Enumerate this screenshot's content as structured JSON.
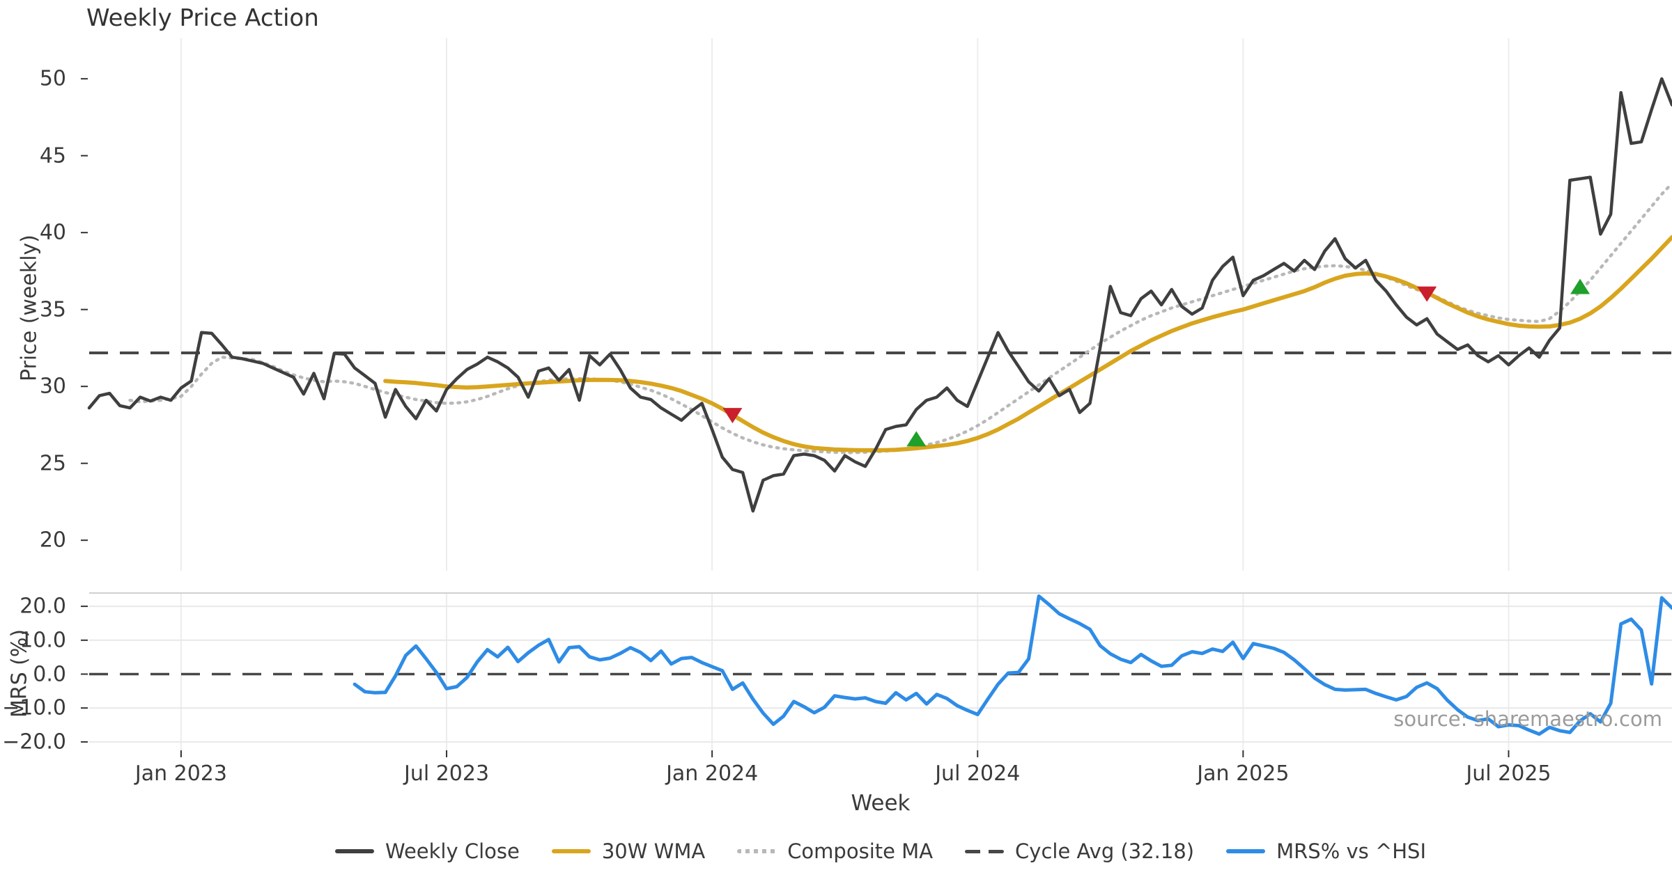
{
  "title": "Weekly Price Action",
  "source_text": "source: sharemaestro.com",
  "colors": {
    "weekly_close": "#3f3f3f",
    "wma": "#d9a51e",
    "composite": "#b8b8b8",
    "cycle_avg": "#474747",
    "mrs": "#2e8ce6",
    "sell_marker": "#c9202c",
    "buy_marker": "#1fa02a",
    "grid": "#ececec",
    "grid_h": "#e8e8e8",
    "spine": "#d0d0d0",
    "tick_text": "#3a3a3a",
    "source": "#9b9b9b"
  },
  "legend": [
    {
      "label": "Weekly Close",
      "swatch": "sw-solid-dark"
    },
    {
      "label": "30W WMA",
      "swatch": "sw-gold"
    },
    {
      "label": "Composite MA",
      "swatch": "sw-dotted"
    },
    {
      "label": "Cycle Avg (32.18)",
      "swatch": "sw-dashed"
    },
    {
      "label": "MRS% vs ^HSI",
      "swatch": "sw-blue"
    }
  ],
  "axes": {
    "price_axis_title": "Price (weekly)",
    "mrs_axis_title": "MRS (%)",
    "x_axis_title": "Week",
    "price_ticks": [
      {
        "v": 20,
        "label": "20"
      },
      {
        "v": 25,
        "label": "25"
      },
      {
        "v": 30,
        "label": "30"
      },
      {
        "v": 35,
        "label": "35"
      },
      {
        "v": 40,
        "label": "40"
      },
      {
        "v": 45,
        "label": "45"
      },
      {
        "v": 50,
        "label": "50"
      }
    ],
    "mrs_ticks": [
      {
        "v": 20,
        "label": "20.0"
      },
      {
        "v": 10,
        "label": "10.0"
      },
      {
        "v": 0,
        "label": "0.0"
      },
      {
        "v": -10,
        "label": "−10.0"
      },
      {
        "v": -20,
        "label": "−20.0"
      }
    ],
    "x_ticks": [
      {
        "week": 9,
        "label": "Jan 2023"
      },
      {
        "week": 35,
        "label": "Jul 2023"
      },
      {
        "week": 61,
        "label": "Jan 2024"
      },
      {
        "week": 87,
        "label": "Jul 2024"
      },
      {
        "week": 113,
        "label": "Jan 2025"
      },
      {
        "week": 139,
        "label": "Jul 2025"
      }
    ]
  },
  "chart_data": [
    {
      "type": "line",
      "panel": "price",
      "title": "Weekly Price Action",
      "ylabel": "Price (weekly)",
      "ylim": [
        19.3,
        52.6
      ],
      "x_start_date": "2022-10-31",
      "x_step": "1 week",
      "weeks_total": 156,
      "cycle_avg": 32.18,
      "series": [
        {
          "name": "Weekly Close",
          "start_week": 0,
          "values": [
            28.6,
            29.4,
            29.55,
            28.75,
            28.6,
            29.3,
            29.05,
            29.3,
            29.1,
            29.9,
            30.35,
            33.5,
            33.45,
            32.7,
            31.9,
            31.8,
            31.65,
            31.5,
            31.2,
            30.9,
            30.6,
            29.5,
            30.85,
            29.2,
            32.15,
            32.1,
            31.2,
            30.7,
            30.2,
            28.0,
            29.8,
            28.7,
            27.9,
            29.1,
            28.4,
            29.8,
            30.5,
            31.1,
            31.45,
            31.9,
            31.6,
            31.2,
            30.6,
            29.3,
            31.0,
            31.2,
            30.4,
            31.1,
            29.1,
            32.0,
            31.4,
            32.1,
            31.1,
            29.9,
            29.3,
            29.15,
            28.6,
            28.2,
            27.8,
            28.4,
            28.9,
            27.2,
            25.4,
            24.6,
            24.4,
            21.9,
            23.9,
            24.2,
            24.3,
            25.5,
            25.6,
            25.5,
            25.2,
            24.5,
            25.5,
            25.1,
            24.8,
            25.9,
            27.2,
            27.4,
            27.5,
            28.5,
            29.1,
            29.3,
            29.9,
            29.1,
            28.7,
            30.3,
            31.9,
            33.5,
            32.3,
            31.3,
            30.3,
            29.7,
            30.5,
            29.4,
            29.8,
            28.3,
            28.9,
            32.5,
            36.5,
            34.8,
            34.6,
            35.7,
            36.2,
            35.3,
            36.3,
            35.2,
            34.7,
            35.1,
            36.9,
            37.8,
            38.4,
            35.9,
            36.9,
            37.2,
            37.6,
            38.0,
            37.5,
            38.2,
            37.6,
            38.8,
            39.6,
            38.3,
            37.7,
            38.2,
            36.9,
            36.2,
            35.3,
            34.5,
            34.0,
            34.4,
            33.4,
            32.9,
            32.4,
            32.7,
            32.0,
            31.6,
            32.0,
            31.4,
            32.0,
            32.5,
            31.9,
            33.0,
            33.8,
            43.4,
            43.5,
            43.6,
            39.9,
            41.2,
            49.1,
            45.8,
            45.9,
            48.0,
            50.0,
            48.3
          ]
        },
        {
          "name": "30W WMA",
          "start_week": 29,
          "values": [
            30.35,
            30.3,
            30.27,
            30.22,
            30.15,
            30.08,
            30.0,
            29.96,
            29.93,
            29.95,
            30.0,
            30.05,
            30.1,
            30.15,
            30.2,
            30.24,
            30.28,
            30.32,
            30.36,
            30.4,
            30.42,
            30.43,
            30.42,
            30.4,
            30.35,
            30.28,
            30.18,
            30.05,
            29.9,
            29.7,
            29.45,
            29.2,
            28.9,
            28.55,
            28.15,
            27.75,
            27.35,
            27.0,
            26.7,
            26.45,
            26.25,
            26.1,
            26.0,
            25.95,
            25.9,
            25.88,
            25.86,
            25.85,
            25.85,
            25.86,
            25.88,
            25.92,
            25.98,
            26.05,
            26.12,
            26.2,
            26.3,
            26.45,
            26.65,
            26.9,
            27.2,
            27.55,
            27.9,
            28.3,
            28.7,
            29.1,
            29.5,
            29.9,
            30.3,
            30.7,
            31.1,
            31.5,
            31.9,
            32.3,
            32.65,
            33.0,
            33.3,
            33.6,
            33.85,
            34.1,
            34.3,
            34.5,
            34.68,
            34.85,
            35.0,
            35.2,
            35.4,
            35.6,
            35.8,
            36.0,
            36.2,
            36.45,
            36.75,
            37.0,
            37.2,
            37.3,
            37.35,
            37.3,
            37.15,
            36.95,
            36.7,
            36.4,
            36.1,
            35.75,
            35.4,
            35.1,
            34.8,
            34.55,
            34.35,
            34.2,
            34.05,
            33.95,
            33.9,
            33.88,
            33.9,
            34.0,
            34.15,
            34.4,
            34.75,
            35.2,
            35.75,
            36.35,
            37.0,
            37.65,
            38.3,
            39.0,
            39.7
          ]
        },
        {
          "name": "Composite MA",
          "start_week": 4,
          "values": [
            29.1,
            29.0,
            29.05,
            29.1,
            29.2,
            29.35,
            30.0,
            30.8,
            31.5,
            31.9,
            31.85,
            31.8,
            31.75,
            31.55,
            31.3,
            31.0,
            30.75,
            30.55,
            30.4,
            30.3,
            30.35,
            30.3,
            30.2,
            30.0,
            29.8,
            29.6,
            29.45,
            29.3,
            29.15,
            29.05,
            28.95,
            28.9,
            28.92,
            29.0,
            29.15,
            29.35,
            29.6,
            29.85,
            30.05,
            30.2,
            30.3,
            30.4,
            30.45,
            30.5,
            30.5,
            30.5,
            30.45,
            30.4,
            30.3,
            30.15,
            29.95,
            29.75,
            29.5,
            29.2,
            28.85,
            28.5,
            28.1,
            27.7,
            27.3,
            26.95,
            26.65,
            26.4,
            26.2,
            26.05,
            25.95,
            25.88,
            25.82,
            25.78,
            25.75,
            25.72,
            25.7,
            25.7,
            25.72,
            25.75,
            25.8,
            25.85,
            25.95,
            26.05,
            26.2,
            26.35,
            26.55,
            26.8,
            27.1,
            27.45,
            27.85,
            28.3,
            28.75,
            29.2,
            29.65,
            30.1,
            30.55,
            31.0,
            31.45,
            31.9,
            32.35,
            32.8,
            33.2,
            33.6,
            33.95,
            34.3,
            34.6,
            34.85,
            35.1,
            35.3,
            35.5,
            35.7,
            35.9,
            36.1,
            36.3,
            36.5,
            36.7,
            36.9,
            37.1,
            37.3,
            37.5,
            37.65,
            37.75,
            37.82,
            37.85,
            37.8,
            37.7,
            37.55,
            37.35,
            37.1,
            36.85,
            36.55,
            36.3,
            36.05,
            35.8,
            35.5,
            35.2,
            34.95,
            34.75,
            34.6,
            34.45,
            34.35,
            34.3,
            34.25,
            34.22,
            34.4,
            34.9,
            35.5,
            36.2,
            36.9,
            37.7,
            38.5,
            39.3,
            40.1,
            40.9,
            41.7,
            42.5,
            43.2
          ]
        }
      ],
      "markers": [
        {
          "type": "sell",
          "week": 63,
          "value": 28.1,
          "date_approx": "2024-01-15"
        },
        {
          "type": "buy",
          "week": 81,
          "value": 26.6,
          "date_approx": "2024-05-20"
        },
        {
          "type": "sell",
          "week": 131,
          "value": 36.0,
          "date_approx": "2025-05-05"
        },
        {
          "type": "buy",
          "week": 146,
          "value": 36.5,
          "date_approx": "2025-08-18"
        }
      ]
    },
    {
      "type": "line",
      "panel": "mrs",
      "ylabel": "MRS (%)",
      "ylim": [
        -23.5,
        24.0
      ],
      "zero_line": 0.0,
      "series": [
        {
          "name": "MRS% vs ^HSI",
          "start_week": 26,
          "values": [
            -3.0,
            -5.2,
            -5.5,
            -5.4,
            -0.5,
            5.5,
            8.3,
            4.5,
            0.5,
            -4.3,
            -3.7,
            -1.0,
            3.6,
            7.2,
            5.1,
            7.9,
            3.7,
            6.3,
            8.5,
            10.2,
            3.6,
            7.8,
            8.1,
            5.1,
            4.2,
            4.7,
            6.1,
            7.8,
            6.4,
            4.0,
            6.8,
            3.0,
            4.6,
            4.9,
            3.4,
            2.2,
            1.0,
            -4.5,
            -2.6,
            -7.4,
            -11.5,
            -14.8,
            -12.4,
            -8.1,
            -9.6,
            -11.4,
            -9.8,
            -6.4,
            -6.9,
            -7.3,
            -7.0,
            -8.1,
            -8.6,
            -5.5,
            -7.6,
            -5.7,
            -8.8,
            -6.0,
            -7.2,
            -9.3,
            -10.7,
            -11.9,
            -7.4,
            -3.0,
            0.3,
            0.5,
            4.5,
            23.0,
            20.5,
            17.8,
            16.3,
            14.9,
            13.2,
            8.4,
            6.0,
            4.4,
            3.4,
            5.8,
            3.9,
            2.3,
            2.6,
            5.4,
            6.6,
            6.1,
            7.4,
            6.7,
            9.4,
            4.6,
            9.0,
            8.3,
            7.6,
            6.4,
            4.2,
            1.6,
            -1.2,
            -3.1,
            -4.5,
            -4.7,
            -4.6,
            -4.5,
            -5.7,
            -6.7,
            -7.6,
            -6.6,
            -3.9,
            -2.6,
            -4.3,
            -7.7,
            -10.5,
            -12.7,
            -13.7,
            -13.2,
            -15.5,
            -15.0,
            -15.2,
            -16.5,
            -17.7,
            -15.7,
            -16.7,
            -17.2,
            -13.8,
            -11.7,
            -14.1,
            -8.6,
            14.8,
            16.2,
            13.0,
            -2.9,
            22.5,
            19.5
          ]
        }
      ]
    }
  ]
}
